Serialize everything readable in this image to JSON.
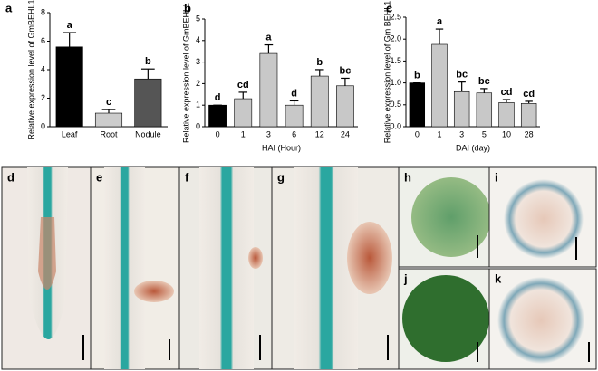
{
  "chart_data": [
    {
      "type": "bar",
      "panel": "a",
      "ylabel": "Relative expression level of GmBEHL1",
      "categories": [
        "Leaf",
        "Root",
        "Nodule"
      ],
      "values": [
        5.6,
        0.95,
        3.35
      ],
      "errors": [
        1.0,
        0.25,
        0.7
      ],
      "letters": [
        "a",
        "c",
        "b"
      ],
      "colors": [
        "#000000",
        "#cccccc",
        "#555555"
      ],
      "ylim": [
        0,
        8
      ],
      "yticks": [
        0,
        2,
        4,
        6,
        8
      ]
    },
    {
      "type": "bar",
      "panel": "b",
      "ylabel": "Relative expression level of GmBEHL1",
      "xlabel": "HAI (Hour)",
      "categories": [
        "0",
        "1",
        "3",
        "6",
        "12",
        "24"
      ],
      "values": [
        1.0,
        1.3,
        3.4,
        1.0,
        2.35,
        1.9
      ],
      "errors": [
        0.0,
        0.3,
        0.4,
        0.2,
        0.3,
        0.35
      ],
      "letters": [
        "d",
        "cd",
        "a",
        "d",
        "b",
        "bc"
      ],
      "colors": [
        "#000000",
        "#c8c8c8",
        "#c8c8c8",
        "#c8c8c8",
        "#c8c8c8",
        "#c8c8c8"
      ],
      "ylim": [
        0,
        5
      ],
      "yticks": [
        0,
        1,
        2,
        3,
        4,
        5
      ]
    },
    {
      "type": "bar",
      "panel": "c",
      "ylabel": "Relative expression level of Gm BEHL1",
      "xlabel": "DAI (day)",
      "categories": [
        "0",
        "1",
        "3",
        "5",
        "10",
        "28"
      ],
      "values": [
        1.0,
        1.88,
        0.8,
        0.77,
        0.55,
        0.53
      ],
      "errors": [
        0.0,
        0.35,
        0.22,
        0.1,
        0.07,
        0.05
      ],
      "letters": [
        "b",
        "a",
        "bc",
        "bc",
        "cd",
        "cd"
      ],
      "colors": [
        "#000000",
        "#c8c8c8",
        "#c8c8c8",
        "#c8c8c8",
        "#c8c8c8",
        "#c8c8c8"
      ],
      "ylim": [
        0,
        2.5
      ],
      "yticks": [
        {
          "value": 0,
          "label": "0.0"
        },
        0.5,
        {
          "value": 1,
          "label": "1.0"
        },
        1.5,
        {
          "value": 2,
          "label": "2.0"
        },
        2.5
      ]
    }
  ],
  "image_panels": [
    "d",
    "e",
    "f",
    "g",
    "h",
    "i",
    "j",
    "k"
  ]
}
